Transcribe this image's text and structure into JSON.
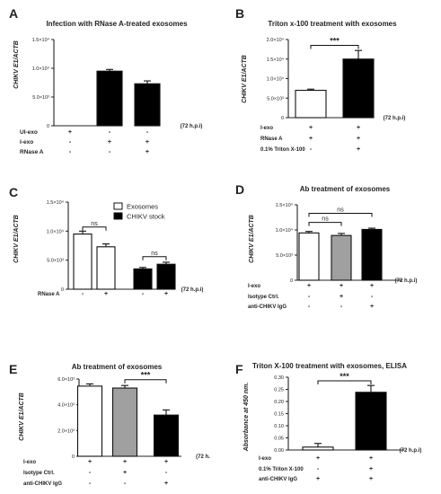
{
  "chart_data": [
    {
      "panel": "A",
      "type": "bar",
      "title": "Infection with RNase A-treated exosomes",
      "ylabel": "CHIKV E1/ACTB",
      "yticks": [
        "0",
        "5.0×10³",
        "1.0×10⁴",
        "1.5×10⁴"
      ],
      "ylim": [
        0,
        15000
      ],
      "values": [
        0,
        9500,
        7300
      ],
      "errors": [
        0,
        300,
        500
      ],
      "fills": [
        "#000000",
        "#000000",
        "#000000"
      ],
      "time_label": "(72 h.p.i)",
      "factors": [
        {
          "label": "UI-exo",
          "signs": [
            "+",
            "-",
            "-"
          ]
        },
        {
          "label": "I-exo",
          "signs": [
            "-",
            "+",
            "+"
          ]
        },
        {
          "label": "RNase A",
          "signs": [
            "-",
            "-",
            "+"
          ]
        }
      ],
      "brackets": []
    },
    {
      "panel": "B",
      "type": "bar",
      "title": "Triton x-100 treatment with exosomes",
      "ylabel": "CHIKV E1/ACTB",
      "yticks": [
        "0",
        "5.0×10³",
        "1.0×10⁴",
        "1.5×10⁴",
        "2.0×10⁴"
      ],
      "ylim": [
        0,
        20000
      ],
      "values": [
        7000,
        15000
      ],
      "errors": [
        300,
        2200
      ],
      "fills": [
        "#ffffff",
        "#000000"
      ],
      "time_label": "(72 h.p.i)",
      "factors": [
        {
          "label": "I-exo",
          "signs": [
            "+",
            "+"
          ]
        },
        {
          "label": "RNase A",
          "signs": [
            "+",
            "+"
          ]
        },
        {
          "label": "0.1% Triton X-100",
          "signs": [
            "-",
            "+"
          ]
        }
      ],
      "brackets": [
        {
          "from": 0,
          "to": 1,
          "level": 18500,
          "text": "***"
        }
      ]
    },
    {
      "panel": "C",
      "type": "bar",
      "title": "",
      "ylabel": "CHIKV E1/ACTB",
      "yticks": [
        "0",
        "5.0×10³",
        "1.0×10⁴",
        "1.5×10⁴"
      ],
      "ylim": [
        0,
        15000
      ],
      "values": [
        9500,
        7300,
        3500,
        4300
      ],
      "errors": [
        500,
        500,
        250,
        350
      ],
      "fills": [
        "#ffffff",
        "#ffffff",
        "#000000",
        "#000000"
      ],
      "time_label": "(72 h.p.i)",
      "factors": [
        {
          "label": "RNase A",
          "signs": [
            "-",
            "+",
            "-",
            "+"
          ]
        }
      ],
      "legend": [
        {
          "label": "Exosomes",
          "fill": "#ffffff"
        },
        {
          "label": "CHIKV stock",
          "fill": "#000000"
        }
      ],
      "brackets": [
        {
          "from": 0,
          "to": 1,
          "level": 10700,
          "text": "ns"
        },
        {
          "from": 2,
          "to": 3,
          "level": 5600,
          "text": "ns"
        }
      ]
    },
    {
      "panel": "D",
      "type": "bar",
      "title": "Ab treatment of exosomes",
      "ylabel": "CHIKV E1/ACTB",
      "yticks": [
        "0",
        "5.0×10³",
        "1.0×10⁴",
        "1.5×10⁴"
      ],
      "ylim": [
        0,
        15000
      ],
      "values": [
        9400,
        8900,
        10100
      ],
      "errors": [
        300,
        400,
        250
      ],
      "fills": [
        "#ffffff",
        "#a0a0a0",
        "#000000"
      ],
      "time_label": "(72 h.p.i)",
      "factors": [
        {
          "label": "I-exo",
          "signs": [
            "+",
            "+",
            "+"
          ]
        },
        {
          "label": "Isotype Ctrl.",
          "signs": [
            "-",
            "+",
            "-"
          ]
        },
        {
          "label": "anti-CHIKV IgG",
          "signs": [
            "-",
            "-",
            "+"
          ]
        }
      ],
      "brackets": [
        {
          "from": 0,
          "to": 1,
          "level": 11500,
          "text": "ns"
        },
        {
          "from": 0,
          "to": 2,
          "level": 13300,
          "text": "ns"
        }
      ]
    },
    {
      "panel": "E",
      "type": "bar",
      "title": "Ab treatment of exosomes",
      "ylabel": "CHIKV E1/ACTB",
      "yticks": [
        "0",
        "2.0×10³",
        "4.0×10³",
        "6.0×10³"
      ],
      "ylim": [
        0,
        6000
      ],
      "values": [
        5450,
        5300,
        3200
      ],
      "errors": [
        170,
        200,
        400
      ],
      "fills": [
        "#ffffff",
        "#a0a0a0",
        "#000000"
      ],
      "time_label": "(72 h.",
      "factors": [
        {
          "label": "I-exo",
          "signs": [
            "+",
            "+",
            "+"
          ]
        },
        {
          "label": "Isotype Ctrl.",
          "signs": [
            "-",
            "+",
            "-"
          ]
        },
        {
          "label": "anti-CHIKV IgG",
          "signs": [
            "-",
            "-",
            "+"
          ]
        }
      ],
      "brackets": [
        {
          "from": 1,
          "to": 2,
          "level": 5950,
          "text": "***"
        }
      ]
    },
    {
      "panel": "F",
      "type": "bar",
      "title": "Triton X-100 treatment with exosomes, ELISA",
      "ylabel": "Absorbance at 450 nm.",
      "yticks": [
        "0.00",
        "0.05",
        "0.10",
        "0.15",
        "0.20",
        "0.25",
        "0.30"
      ],
      "ylim": [
        0,
        0.3
      ],
      "values": [
        0.012,
        0.238
      ],
      "errors": [
        0.015,
        0.028
      ],
      "fills": [
        "#ffffff",
        "#000000"
      ],
      "time_label": "(72 h.p.i)",
      "factors": [
        {
          "label": "I-exo",
          "signs": [
            "+",
            "+"
          ]
        },
        {
          "label": "0.1% Triton X-100",
          "signs": [
            "-",
            "+"
          ]
        },
        {
          "label": "anti-CHIKV IgG",
          "signs": [
            "+",
            "+"
          ]
        }
      ],
      "brackets": [
        {
          "from": 0,
          "to": 1,
          "level": 0.285,
          "text": "***"
        }
      ]
    }
  ]
}
